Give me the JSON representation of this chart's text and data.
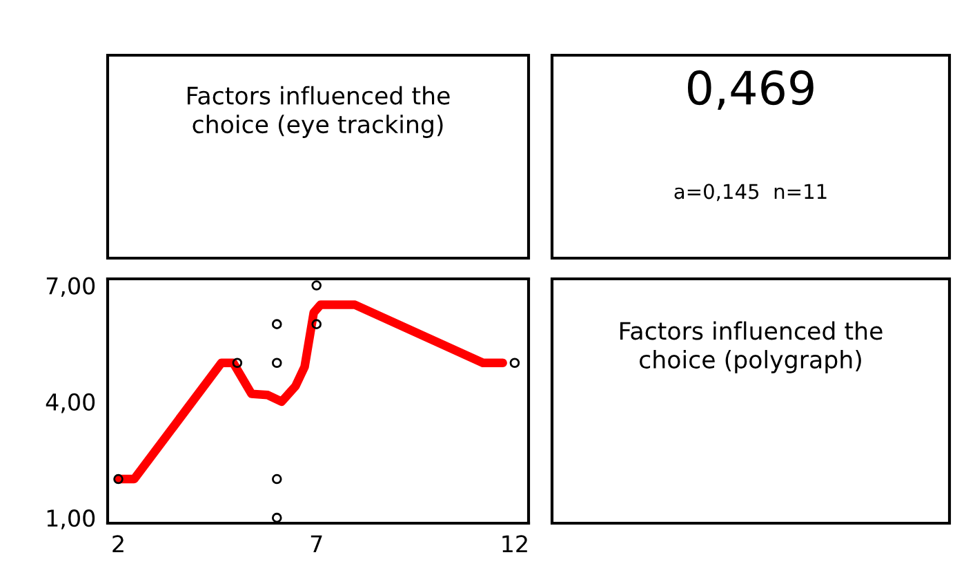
{
  "chart_data": [
    {
      "type": "other",
      "annotations": [
        "Factors influenced the\nchoice (eye tracking)"
      ]
    },
    {
      "type": "other",
      "annotations": [
        "0,469",
        "a=0,145  n=11"
      ]
    },
    {
      "type": "scatter",
      "xlim": [
        1.73,
        12.35
      ],
      "ylim": [
        0.86,
        7.17
      ],
      "xticks": [
        2,
        7,
        12
      ],
      "yticks": [
        {
          "value": 1,
          "label": "1,00"
        },
        {
          "value": 4,
          "label": "4,00"
        },
        {
          "value": 7,
          "label": "7,00"
        }
      ],
      "grid": false,
      "series": [
        {
          "type": "scatter",
          "color": "#000000",
          "marker": "circle",
          "x": [
            2,
            5,
            6,
            6,
            6,
            6,
            7,
            7,
            12
          ],
          "values": [
            2,
            5,
            6,
            5,
            2,
            1,
            7,
            6,
            5
          ]
        },
        {
          "type": "line",
          "color": "#ff0000",
          "marker": "none",
          "line_style": "solid",
          "x": [
            2,
            2.4,
            4.6,
            4.9,
            5.36,
            5.77,
            6.12,
            6.47,
            6.7,
            6.93,
            7.1,
            7.97,
            11.2,
            11.7
          ],
          "values": [
            2,
            2,
            5,
            5,
            4.2,
            4.17,
            4.0,
            4.4,
            4.9,
            6.3,
            6.5,
            6.5,
            5.0,
            5.0
          ]
        }
      ]
    },
    {
      "type": "other",
      "annotations": [
        "Factors influenced the\nchoice (polygraph)"
      ]
    }
  ]
}
